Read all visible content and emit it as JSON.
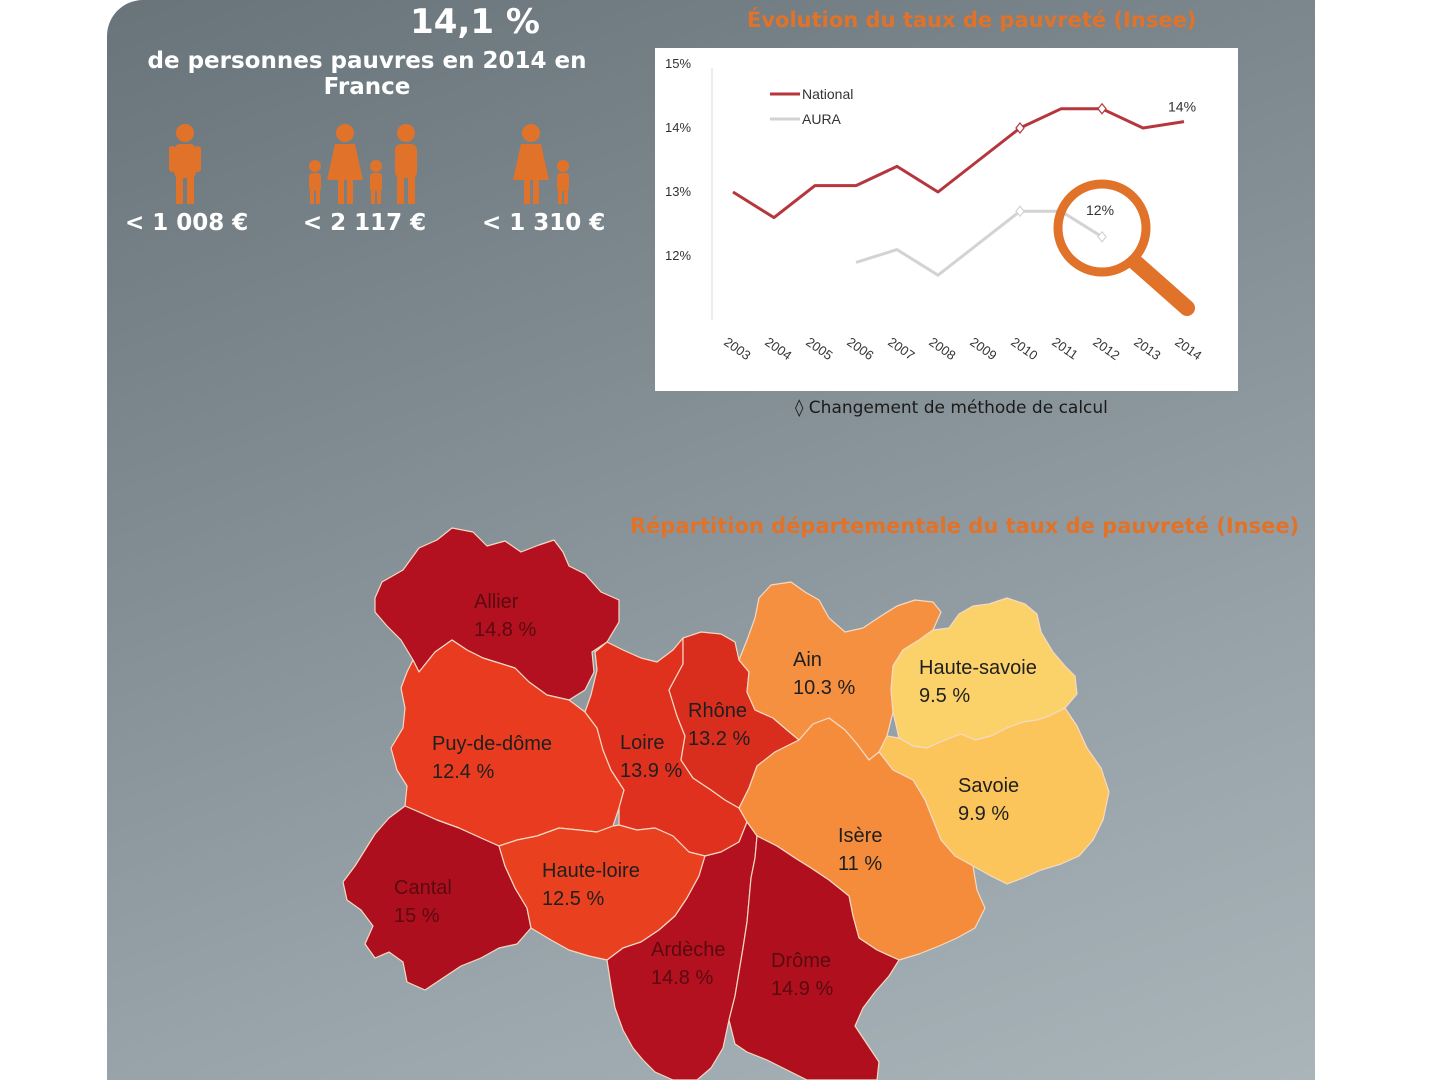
{
  "header": {
    "headline": "14,1 %",
    "subline": "de personnes pauvres en 2014 en France"
  },
  "thresholds": [
    {
      "icon": "single-person-icon",
      "amount": "< 1 008 €"
    },
    {
      "icon": "family-icon",
      "amount": "< 2 117 €"
    },
    {
      "icon": "single-parent-icon",
      "amount": "< 1 310 €"
    }
  ],
  "chart_section": {
    "title": "Évolution du taux de pauvreté (Insee)",
    "note": "◊ Changement de méthode de calcul"
  },
  "chart_data": {
    "type": "line",
    "title": "Évolution du taux de pauvreté (Insee)",
    "x": [
      "2003",
      "2004",
      "2005",
      "2006",
      "2007",
      "2008",
      "2009",
      "2010",
      "2011",
      "2012",
      "2013",
      "2014"
    ],
    "y_ticks": [
      "12%",
      "13%",
      "14%",
      "15%"
    ],
    "ylim": [
      11,
      15
    ],
    "legend_position": "top-left",
    "series": [
      {
        "name": "National",
        "color": "#b5363c",
        "values": [
          13.0,
          12.6,
          13.1,
          13.1,
          13.4,
          13.0,
          13.5,
          14.0,
          14.3,
          14.3,
          14.0,
          14.1
        ]
      },
      {
        "name": "AURA",
        "color": "#d3d3d3",
        "values": [
          null,
          null,
          null,
          11.9,
          12.1,
          11.7,
          12.2,
          12.7,
          12.7,
          12.3,
          null,
          null
        ]
      }
    ],
    "method_change_markers": [
      "2010",
      "2012"
    ],
    "annotations": [
      {
        "text": "14%",
        "series": "National",
        "x": "2014"
      },
      {
        "text": "12%",
        "series": "AURA",
        "x": "2012"
      }
    ]
  },
  "map_section": {
    "title": "Répartition départementale du taux de pauvreté (Insee)",
    "departments": [
      {
        "name": "Allier",
        "rate": "14.8 %",
        "color": "#b3111f"
      },
      {
        "name": "Puy-de-dôme",
        "rate": "12.4 %",
        "color": "#e83b1f"
      },
      {
        "name": "Loire",
        "rate": "13.9 %",
        "color": "#e0311f"
      },
      {
        "name": "Rhône",
        "rate": "13.2 %",
        "color": "#d92e1e"
      },
      {
        "name": "Ain",
        "rate": "10.3 %",
        "color": "#f59040"
      },
      {
        "name": "Haute-savoie",
        "rate": "9.5 %",
        "color": "#fbd26a"
      },
      {
        "name": "Savoie",
        "rate": "9.9 %",
        "color": "#fbc55c"
      },
      {
        "name": "Isère",
        "rate": "11 %",
        "color": "#f58c3c"
      },
      {
        "name": "Cantal",
        "rate": "15 %",
        "color": "#ae0f1e"
      },
      {
        "name": "Haute-loire",
        "rate": "12.5 %",
        "color": "#e9401f"
      },
      {
        "name": "Ardèche",
        "rate": "14.8 %",
        "color": "#b3111f"
      },
      {
        "name": "Drôme",
        "rate": "14.9 %",
        "color": "#b0101e"
      }
    ]
  },
  "colors": {
    "icon_orange": "#e0722a",
    "accent_orange": "#e0722a"
  }
}
